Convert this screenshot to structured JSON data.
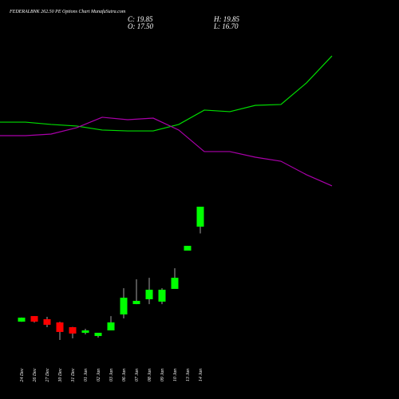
{
  "chart_data": {
    "type": "candlestick",
    "title": "FEDERALBNK 262.50 PE Options Chart MunafaSutra.com",
    "ohlc_labels": {
      "close": "C: 19.85",
      "high": "H: 19.85",
      "open": "O: 17.50",
      "low": "L: 16.70"
    },
    "categories": [
      "24 Dec",
      "26 Dec",
      "27 Dec",
      "30 Dec",
      "31 Dec",
      "01 Jan",
      "02 Jan",
      "03 Jan",
      "06 Jan",
      "07 Jan",
      "08 Jan",
      "09 Jan",
      "10 Jan",
      "13 Jan",
      "14 Jan"
    ],
    "open": [
      6.31,
      6.97,
      6.6,
      6.22,
      5.66,
      5.0,
      4.62,
      5.28,
      7.16,
      8.38,
      8.95,
      8.67,
      10.17,
      14.68,
      17.5
    ],
    "high": [
      6.8,
      6.97,
      6.88,
      6.3,
      5.7,
      5.47,
      5.0,
      6.97,
      10.26,
      11.3,
      11.48,
      10.26,
      12.61,
      15.24,
      19.85
    ],
    "low": [
      6.3,
      6.2,
      5.66,
      4.16,
      4.34,
      4.81,
      4.43,
      5.28,
      6.69,
      8.38,
      8.38,
      8.38,
      10.17,
      14.68,
      16.7
    ],
    "close": [
      6.78,
      6.31,
      5.94,
      5.1,
      4.91,
      5.28,
      5.0,
      6.22,
      9.13,
      8.76,
      10.07,
      10.07,
      11.48,
      15.24,
      19.85
    ],
    "up_color": "#00ff00",
    "down_color": "#ff0000",
    "ylim": [
      2.84,
      20.7
    ],
    "indicators": {
      "ylim": [
        0,
        100
      ],
      "series": [
        {
          "color": "#00dd00",
          "values": [
            48.3,
            48.3,
            46.7,
            45.6,
            42.8,
            42.2,
            42.2,
            46.7,
            56.7,
            55.6,
            60.0,
            60.6,
            75.6,
            94.4
          ]
        },
        {
          "color": "#aa00aa",
          "values": [
            38.9,
            38.9,
            40.0,
            44.4,
            51.7,
            50.0,
            51.1,
            42.8,
            27.8,
            27.8,
            23.9,
            21.1,
            11.7,
            3.9
          ]
        }
      ]
    }
  }
}
